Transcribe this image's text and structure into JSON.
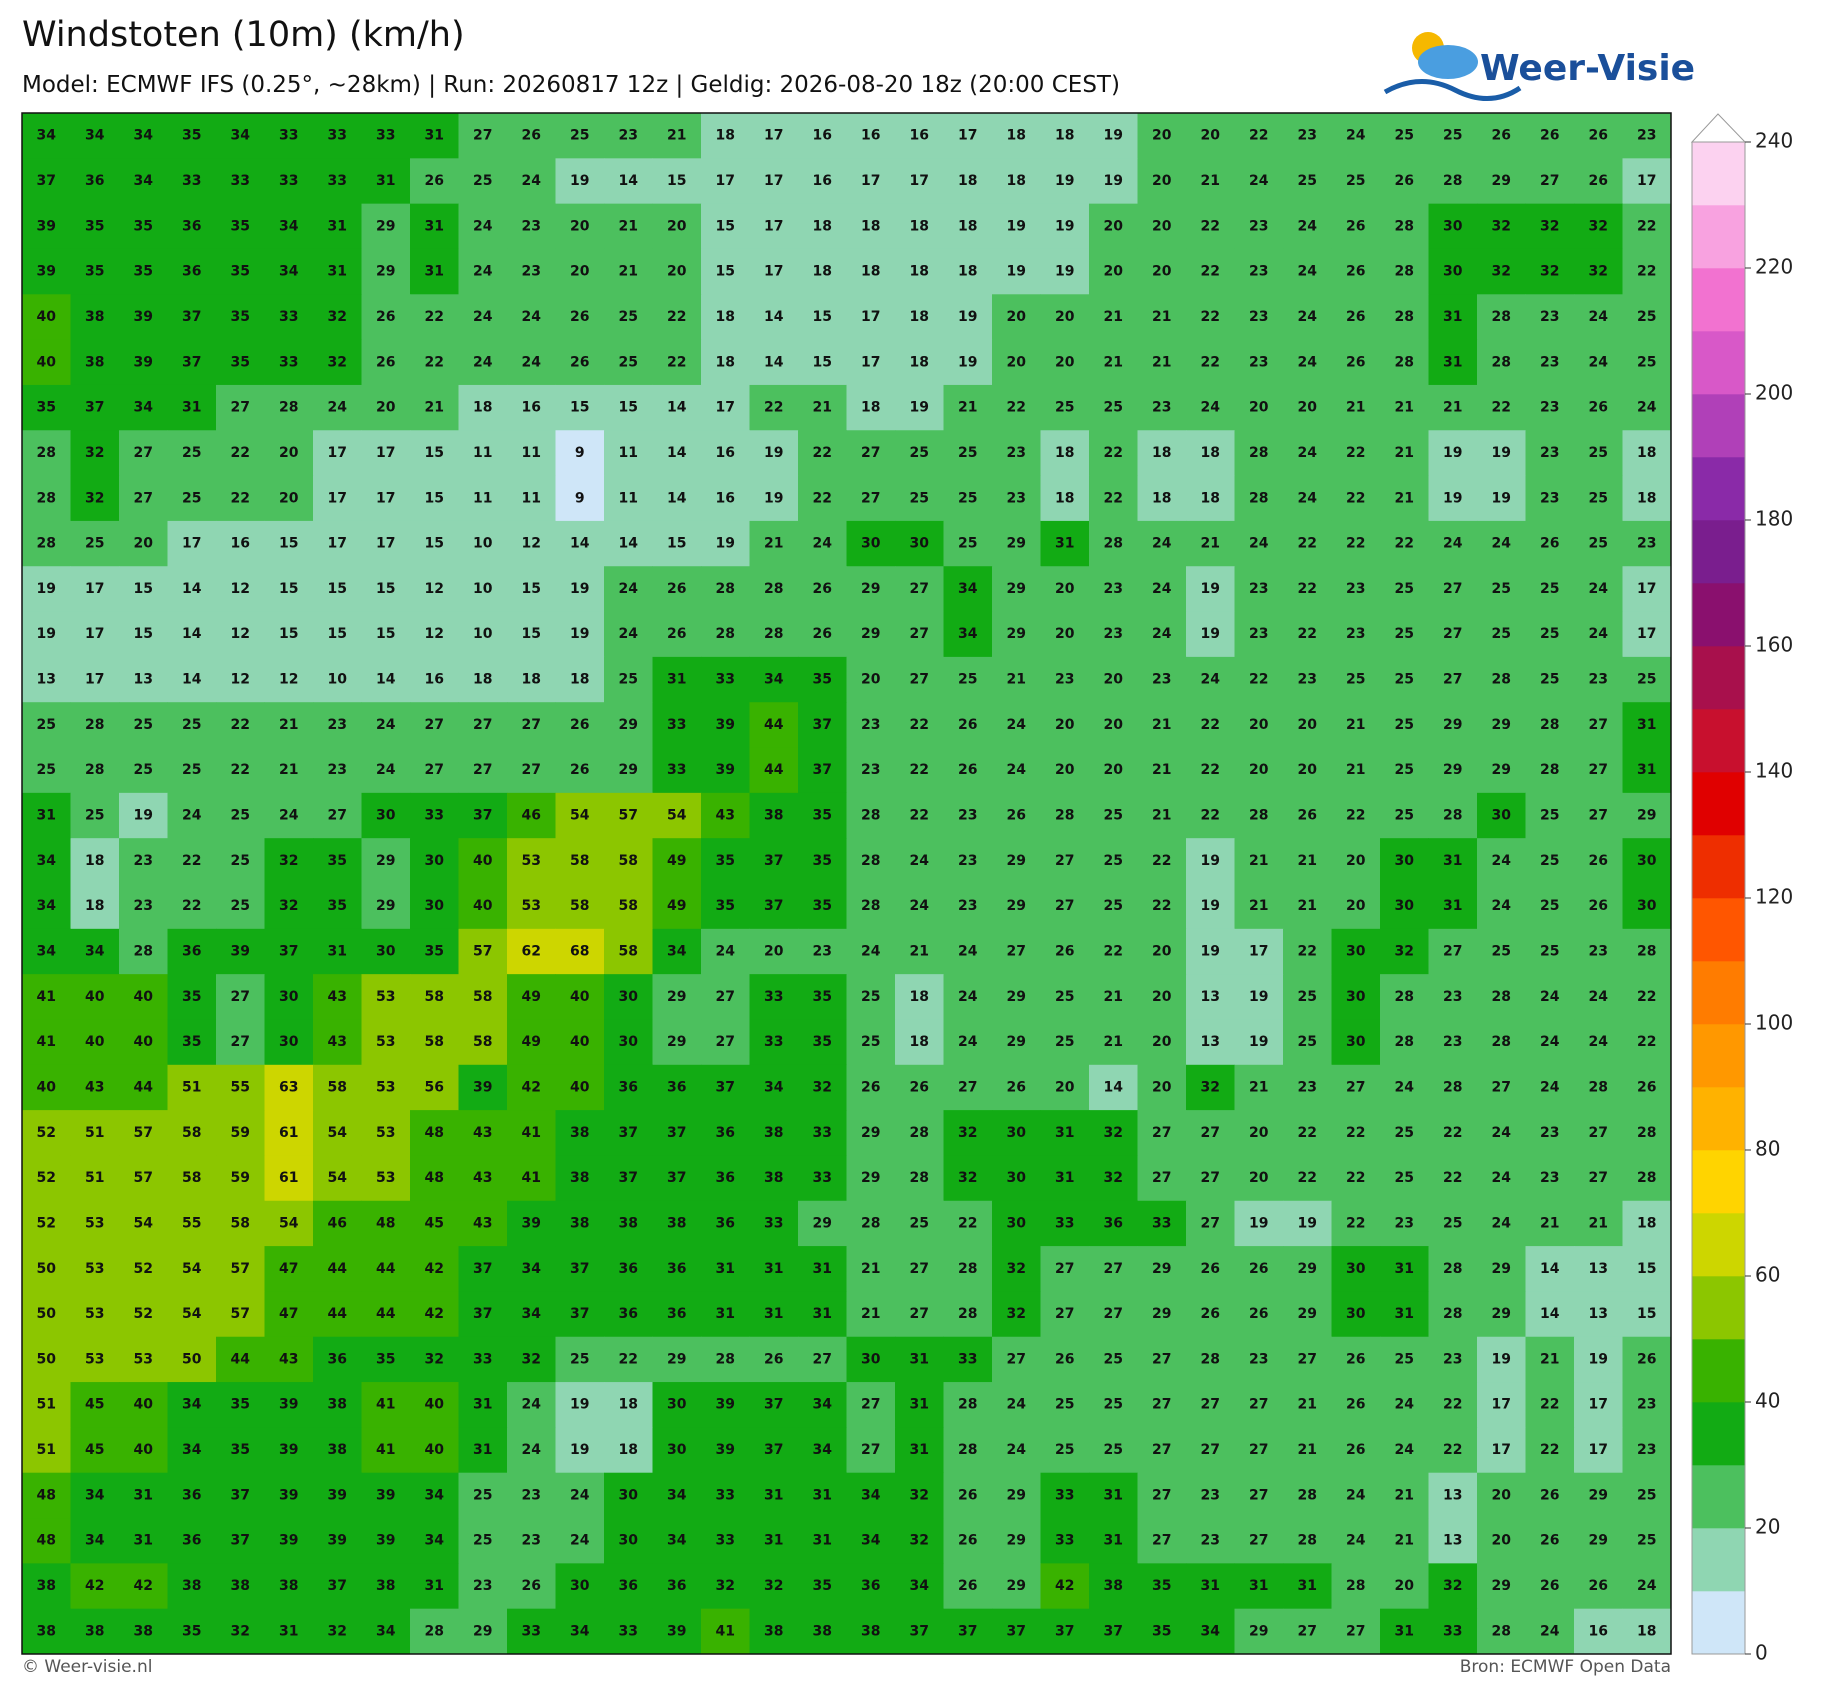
{
  "chart_data": {
    "type": "heatmap",
    "title": "Windstoten (10m) (km/h)",
    "subtitle": "Model: ECMWF IFS (0.25°, ~28km)  |  Run: 20260817 12z  |  Geldig: 2026-08-20 18z (20:00 CEST)",
    "logo": "Weer-Visie",
    "credit": "© Weer-visie.nl",
    "source": "Bron: ECMWF Open Data",
    "clim": [
      0,
      240
    ],
    "cticks": [
      0,
      20,
      40,
      60,
      80,
      100,
      120,
      140,
      160,
      180,
      200,
      220,
      240
    ],
    "colors": [
      "#cfe6f8",
      "#8fd6b2",
      "#4cc05e",
      "#12ab14",
      "#39b200",
      "#8cc600",
      "#cdd600",
      "#ffd400",
      "#ffb200",
      "#ff9800",
      "#ff7c00",
      "#ff5600",
      "#ee2e00",
      "#e00000",
      "#c8102e",
      "#a8104c",
      "#8a106e",
      "#7a1e8e",
      "#8a2aa8",
      "#b040b8",
      "#d858c8",
      "#f272d0",
      "#f8a2e0",
      "#fcd2f0"
    ],
    "values": [
      [
        34,
        34,
        34,
        35,
        34,
        33,
        33,
        33,
        31,
        27,
        26,
        25,
        23,
        21,
        18,
        17,
        16,
        16,
        16,
        17,
        18,
        18,
        19,
        20,
        20,
        22,
        23,
        24,
        25,
        25,
        26,
        26,
        26,
        23
      ],
      [
        37,
        36,
        34,
        33,
        33,
        33,
        33,
        31,
        26,
        25,
        24,
        19,
        14,
        15,
        17,
        17,
        16,
        17,
        17,
        18,
        18,
        19,
        19,
        20,
        21,
        24,
        25,
        25,
        26,
        28,
        29,
        27,
        26,
        17
      ],
      [
        39,
        35,
        35,
        36,
        35,
        34,
        31,
        29,
        31,
        24,
        23,
        20,
        21,
        20,
        15,
        17,
        18,
        18,
        18,
        18,
        19,
        19,
        20,
        20,
        22,
        23,
        24,
        26,
        28,
        30,
        32,
        32,
        32,
        22
      ],
      [
        39,
        35,
        35,
        36,
        35,
        34,
        31,
        29,
        31,
        24,
        23,
        20,
        21,
        20,
        15,
        17,
        18,
        18,
        18,
        18,
        19,
        19,
        20,
        20,
        22,
        23,
        24,
        26,
        28,
        30,
        32,
        32,
        32,
        22
      ],
      [
        40,
        38,
        39,
        37,
        35,
        33,
        32,
        26,
        22,
        24,
        24,
        26,
        25,
        22,
        18,
        14,
        15,
        17,
        18,
        19,
        20,
        20,
        21,
        21,
        22,
        23,
        24,
        26,
        28,
        31,
        28,
        23,
        24,
        25
      ],
      [
        40,
        38,
        39,
        37,
        35,
        33,
        32,
        26,
        22,
        24,
        24,
        26,
        25,
        22,
        18,
        14,
        15,
        17,
        18,
        19,
        20,
        20,
        21,
        21,
        22,
        23,
        24,
        26,
        28,
        31,
        28,
        23,
        24,
        25
      ],
      [
        35,
        37,
        34,
        31,
        27,
        28,
        24,
        20,
        21,
        18,
        16,
        15,
        15,
        14,
        17,
        22,
        21,
        18,
        19,
        21,
        22,
        25,
        25,
        23,
        24,
        20,
        20,
        21,
        21,
        21,
        22,
        23,
        26,
        24
      ],
      [
        28,
        32,
        27,
        25,
        22,
        20,
        17,
        17,
        15,
        11,
        11,
        9,
        11,
        14,
        16,
        19,
        22,
        27,
        25,
        25,
        23,
        18,
        22,
        18,
        18,
        28,
        24,
        22,
        21,
        19,
        19,
        23,
        25,
        18
      ],
      [
        28,
        32,
        27,
        25,
        22,
        20,
        17,
        17,
        15,
        11,
        11,
        9,
        11,
        14,
        16,
        19,
        22,
        27,
        25,
        25,
        23,
        18,
        22,
        18,
        18,
        28,
        24,
        22,
        21,
        19,
        19,
        23,
        25,
        18
      ],
      [
        28,
        25,
        20,
        17,
        16,
        15,
        17,
        17,
        15,
        10,
        12,
        14,
        14,
        15,
        19,
        21,
        24,
        30,
        30,
        25,
        29,
        31,
        28,
        24,
        21,
        24,
        22,
        22,
        22,
        24,
        24,
        26,
        25,
        23
      ],
      [
        19,
        17,
        15,
        14,
        12,
        15,
        15,
        15,
        12,
        10,
        15,
        19,
        24,
        26,
        28,
        28,
        26,
        29,
        27,
        34,
        29,
        20,
        23,
        24,
        19,
        23,
        22,
        23,
        25,
        27,
        25,
        25,
        24,
        17
      ],
      [
        19,
        17,
        15,
        14,
        12,
        15,
        15,
        15,
        12,
        10,
        15,
        19,
        24,
        26,
        28,
        28,
        26,
        29,
        27,
        34,
        29,
        20,
        23,
        24,
        19,
        23,
        22,
        23,
        25,
        27,
        25,
        25,
        24,
        17
      ],
      [
        13,
        17,
        13,
        14,
        12,
        12,
        10,
        14,
        16,
        18,
        18,
        18,
        25,
        31,
        33,
        34,
        35,
        20,
        27,
        25,
        21,
        23,
        20,
        23,
        24,
        22,
        23,
        25,
        25,
        27,
        28,
        25,
        23,
        25
      ],
      [
        25,
        28,
        25,
        25,
        22,
        21,
        23,
        24,
        27,
        27,
        27,
        26,
        29,
        33,
        39,
        44,
        37,
        23,
        22,
        26,
        24,
        20,
        20,
        21,
        22,
        20,
        20,
        21,
        25,
        29,
        29,
        28,
        27,
        31
      ],
      [
        25,
        28,
        25,
        25,
        22,
        21,
        23,
        24,
        27,
        27,
        27,
        26,
        29,
        33,
        39,
        44,
        37,
        23,
        22,
        26,
        24,
        20,
        20,
        21,
        22,
        20,
        20,
        21,
        25,
        29,
        29,
        28,
        27,
        31
      ],
      [
        31,
        25,
        19,
        24,
        25,
        24,
        27,
        30,
        33,
        37,
        46,
        54,
        57,
        54,
        43,
        38,
        35,
        28,
        22,
        23,
        26,
        28,
        25,
        21,
        22,
        28,
        26,
        22,
        25,
        28,
        30,
        25,
        27,
        29
      ],
      [
        34,
        18,
        23,
        22,
        25,
        32,
        35,
        29,
        30,
        40,
        53,
        58,
        58,
        49,
        35,
        37,
        35,
        28,
        24,
        23,
        29,
        27,
        25,
        22,
        19,
        21,
        21,
        20,
        30,
        31,
        24,
        25,
        26,
        30
      ],
      [
        34,
        18,
        23,
        22,
        25,
        32,
        35,
        29,
        30,
        40,
        53,
        58,
        58,
        49,
        35,
        37,
        35,
        28,
        24,
        23,
        29,
        27,
        25,
        22,
        19,
        21,
        21,
        20,
        30,
        31,
        24,
        25,
        26,
        30
      ],
      [
        34,
        34,
        28,
        36,
        39,
        37,
        31,
        30,
        35,
        57,
        62,
        68,
        58,
        34,
        24,
        20,
        23,
        24,
        21,
        24,
        27,
        26,
        22,
        20,
        19,
        17,
        22,
        30,
        32,
        27,
        25,
        25,
        23,
        28
      ],
      [
        41,
        40,
        40,
        35,
        27,
        30,
        43,
        53,
        58,
        58,
        49,
        40,
        30,
        29,
        27,
        33,
        35,
        25,
        18,
        24,
        29,
        25,
        21,
        20,
        13,
        19,
        25,
        30,
        28,
        23,
        28,
        24,
        24,
        22
      ],
      [
        41,
        40,
        40,
        35,
        27,
        30,
        43,
        53,
        58,
        58,
        49,
        40,
        30,
        29,
        27,
        33,
        35,
        25,
        18,
        24,
        29,
        25,
        21,
        20,
        13,
        19,
        25,
        30,
        28,
        23,
        28,
        24,
        24,
        22
      ],
      [
        40,
        43,
        44,
        51,
        55,
        63,
        58,
        53,
        56,
        39,
        42,
        40,
        36,
        36,
        37,
        34,
        32,
        26,
        26,
        27,
        26,
        20,
        14,
        20,
        32,
        21,
        23,
        27,
        24,
        28,
        27,
        24,
        28,
        26
      ],
      [
        52,
        51,
        57,
        58,
        59,
        61,
        54,
        53,
        48,
        43,
        41,
        38,
        37,
        37,
        36,
        38,
        33,
        29,
        28,
        32,
        30,
        31,
        32,
        27,
        27,
        20,
        22,
        22,
        25,
        22,
        24,
        23,
        27,
        28
      ],
      [
        52,
        51,
        57,
        58,
        59,
        61,
        54,
        53,
        48,
        43,
        41,
        38,
        37,
        37,
        36,
        38,
        33,
        29,
        28,
        32,
        30,
        31,
        32,
        27,
        27,
        20,
        22,
        22,
        25,
        22,
        24,
        23,
        27,
        28
      ],
      [
        52,
        53,
        54,
        55,
        58,
        54,
        46,
        48,
        45,
        43,
        39,
        38,
        38,
        38,
        36,
        33,
        29,
        28,
        25,
        22,
        30,
        33,
        36,
        33,
        27,
        19,
        19,
        22,
        23,
        25,
        24,
        21,
        21,
        18
      ],
      [
        50,
        53,
        52,
        54,
        57,
        47,
        44,
        44,
        42,
        37,
        34,
        37,
        36,
        36,
        31,
        31,
        31,
        21,
        27,
        28,
        32,
        27,
        27,
        29,
        26,
        26,
        29,
        30,
        31,
        28,
        29,
        14,
        13,
        15
      ],
      [
        50,
        53,
        52,
        54,
        57,
        47,
        44,
        44,
        42,
        37,
        34,
        37,
        36,
        36,
        31,
        31,
        31,
        21,
        27,
        28,
        32,
        27,
        27,
        29,
        26,
        26,
        29,
        30,
        31,
        28,
        29,
        14,
        13,
        15
      ],
      [
        50,
        53,
        53,
        50,
        44,
        43,
        36,
        35,
        32,
        33,
        32,
        25,
        22,
        29,
        28,
        26,
        27,
        30,
        31,
        33,
        27,
        26,
        25,
        27,
        28,
        23,
        27,
        26,
        25,
        23,
        19,
        21,
        19,
        26
      ],
      [
        51,
        45,
        40,
        34,
        35,
        39,
        38,
        41,
        40,
        31,
        24,
        19,
        18,
        30,
        39,
        37,
        34,
        27,
        31,
        28,
        24,
        25,
        25,
        27,
        27,
        27,
        21,
        26,
        24,
        22,
        17,
        22,
        17,
        23
      ],
      [
        51,
        45,
        40,
        34,
        35,
        39,
        38,
        41,
        40,
        31,
        24,
        19,
        18,
        30,
        39,
        37,
        34,
        27,
        31,
        28,
        24,
        25,
        25,
        27,
        27,
        27,
        21,
        26,
        24,
        22,
        17,
        22,
        17,
        23
      ],
      [
        48,
        34,
        31,
        36,
        37,
        39,
        39,
        39,
        34,
        25,
        23,
        24,
        30,
        34,
        33,
        31,
        31,
        34,
        32,
        26,
        29,
        33,
        31,
        27,
        23,
        27,
        28,
        24,
        21,
        13,
        20,
        26,
        29,
        25
      ],
      [
        48,
        34,
        31,
        36,
        37,
        39,
        39,
        39,
        34,
        25,
        23,
        24,
        30,
        34,
        33,
        31,
        31,
        34,
        32,
        26,
        29,
        33,
        31,
        27,
        23,
        27,
        28,
        24,
        21,
        13,
        20,
        26,
        29,
        25
      ],
      [
        38,
        42,
        42,
        38,
        38,
        38,
        37,
        38,
        31,
        23,
        26,
        30,
        36,
        36,
        32,
        32,
        35,
        36,
        34,
        26,
        29,
        42,
        38,
        35,
        31,
        31,
        31,
        28,
        20,
        32,
        29,
        26,
        26,
        24
      ],
      [
        38,
        38,
        38,
        35,
        32,
        31,
        32,
        34,
        28,
        29,
        33,
        34,
        33,
        39,
        41,
        38,
        38,
        38,
        37,
        37,
        37,
        37,
        37,
        35,
        34,
        29,
        27,
        27,
        31,
        33,
        28,
        24,
        16,
        18
      ]
    ]
  }
}
